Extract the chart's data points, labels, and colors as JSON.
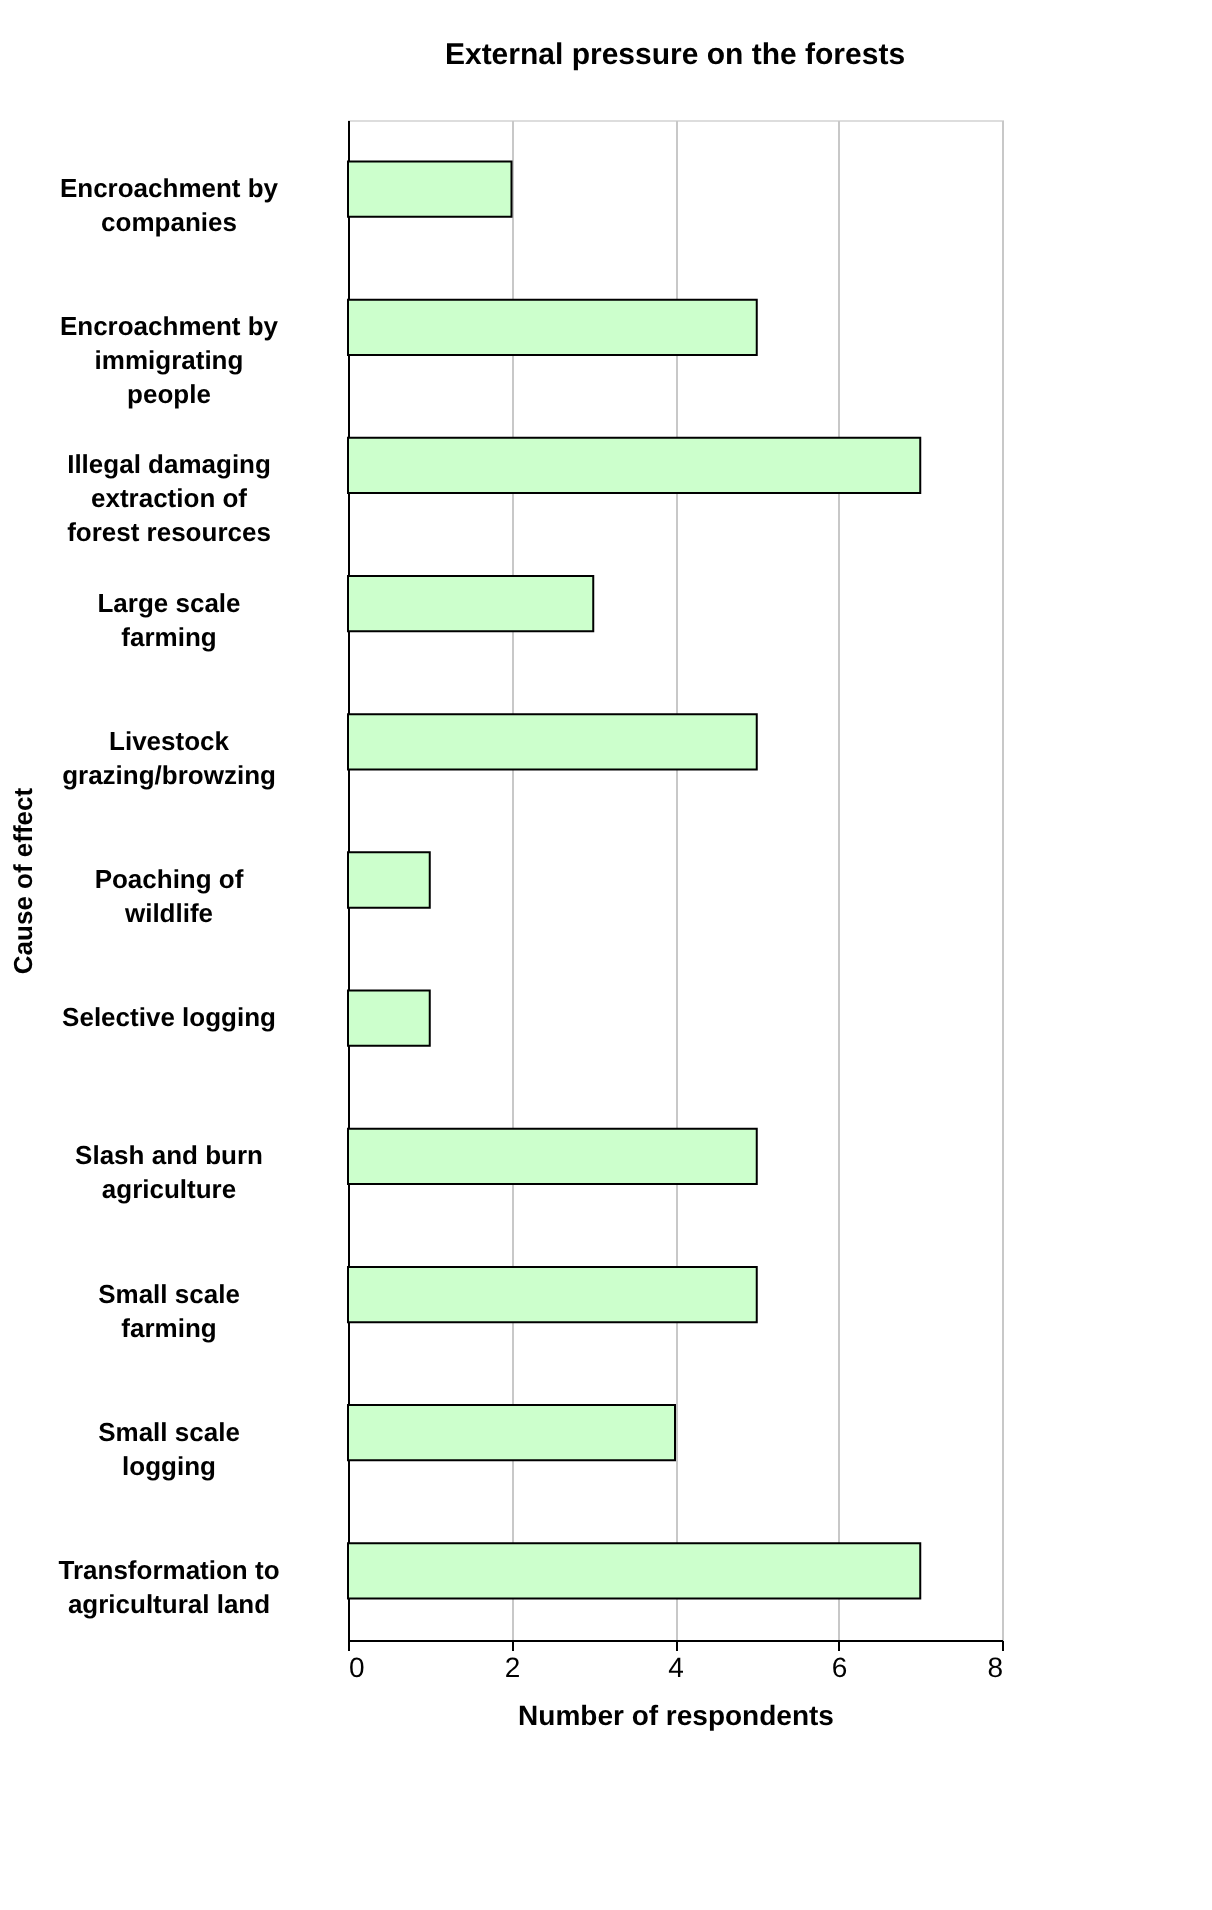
{
  "chart_data": {
    "type": "bar",
    "orientation": "horizontal",
    "title": "External pressure on the forests",
    "xlabel": "Number of respondents",
    "ylabel": "Cause of effect",
    "categories": [
      "Encroachment by companies",
      "Encroachment by immigrating people",
      "Illegal damaging extraction of forest resources",
      "Large scale farming",
      "Livestock grazing/browzing",
      "Poaching of wildlife",
      "Selective logging",
      "Slash and burn agriculture",
      "Small scale farming",
      "Small scale logging",
      "Transformation to agricultural land"
    ],
    "values": [
      2,
      5,
      7,
      3,
      5,
      1,
      1,
      5,
      5,
      4,
      7
    ],
    "color": "#ccffcc",
    "xlim": [
      0,
      8
    ],
    "xticks": [
      0,
      2,
      4,
      6,
      8
    ],
    "grid": "x"
  }
}
